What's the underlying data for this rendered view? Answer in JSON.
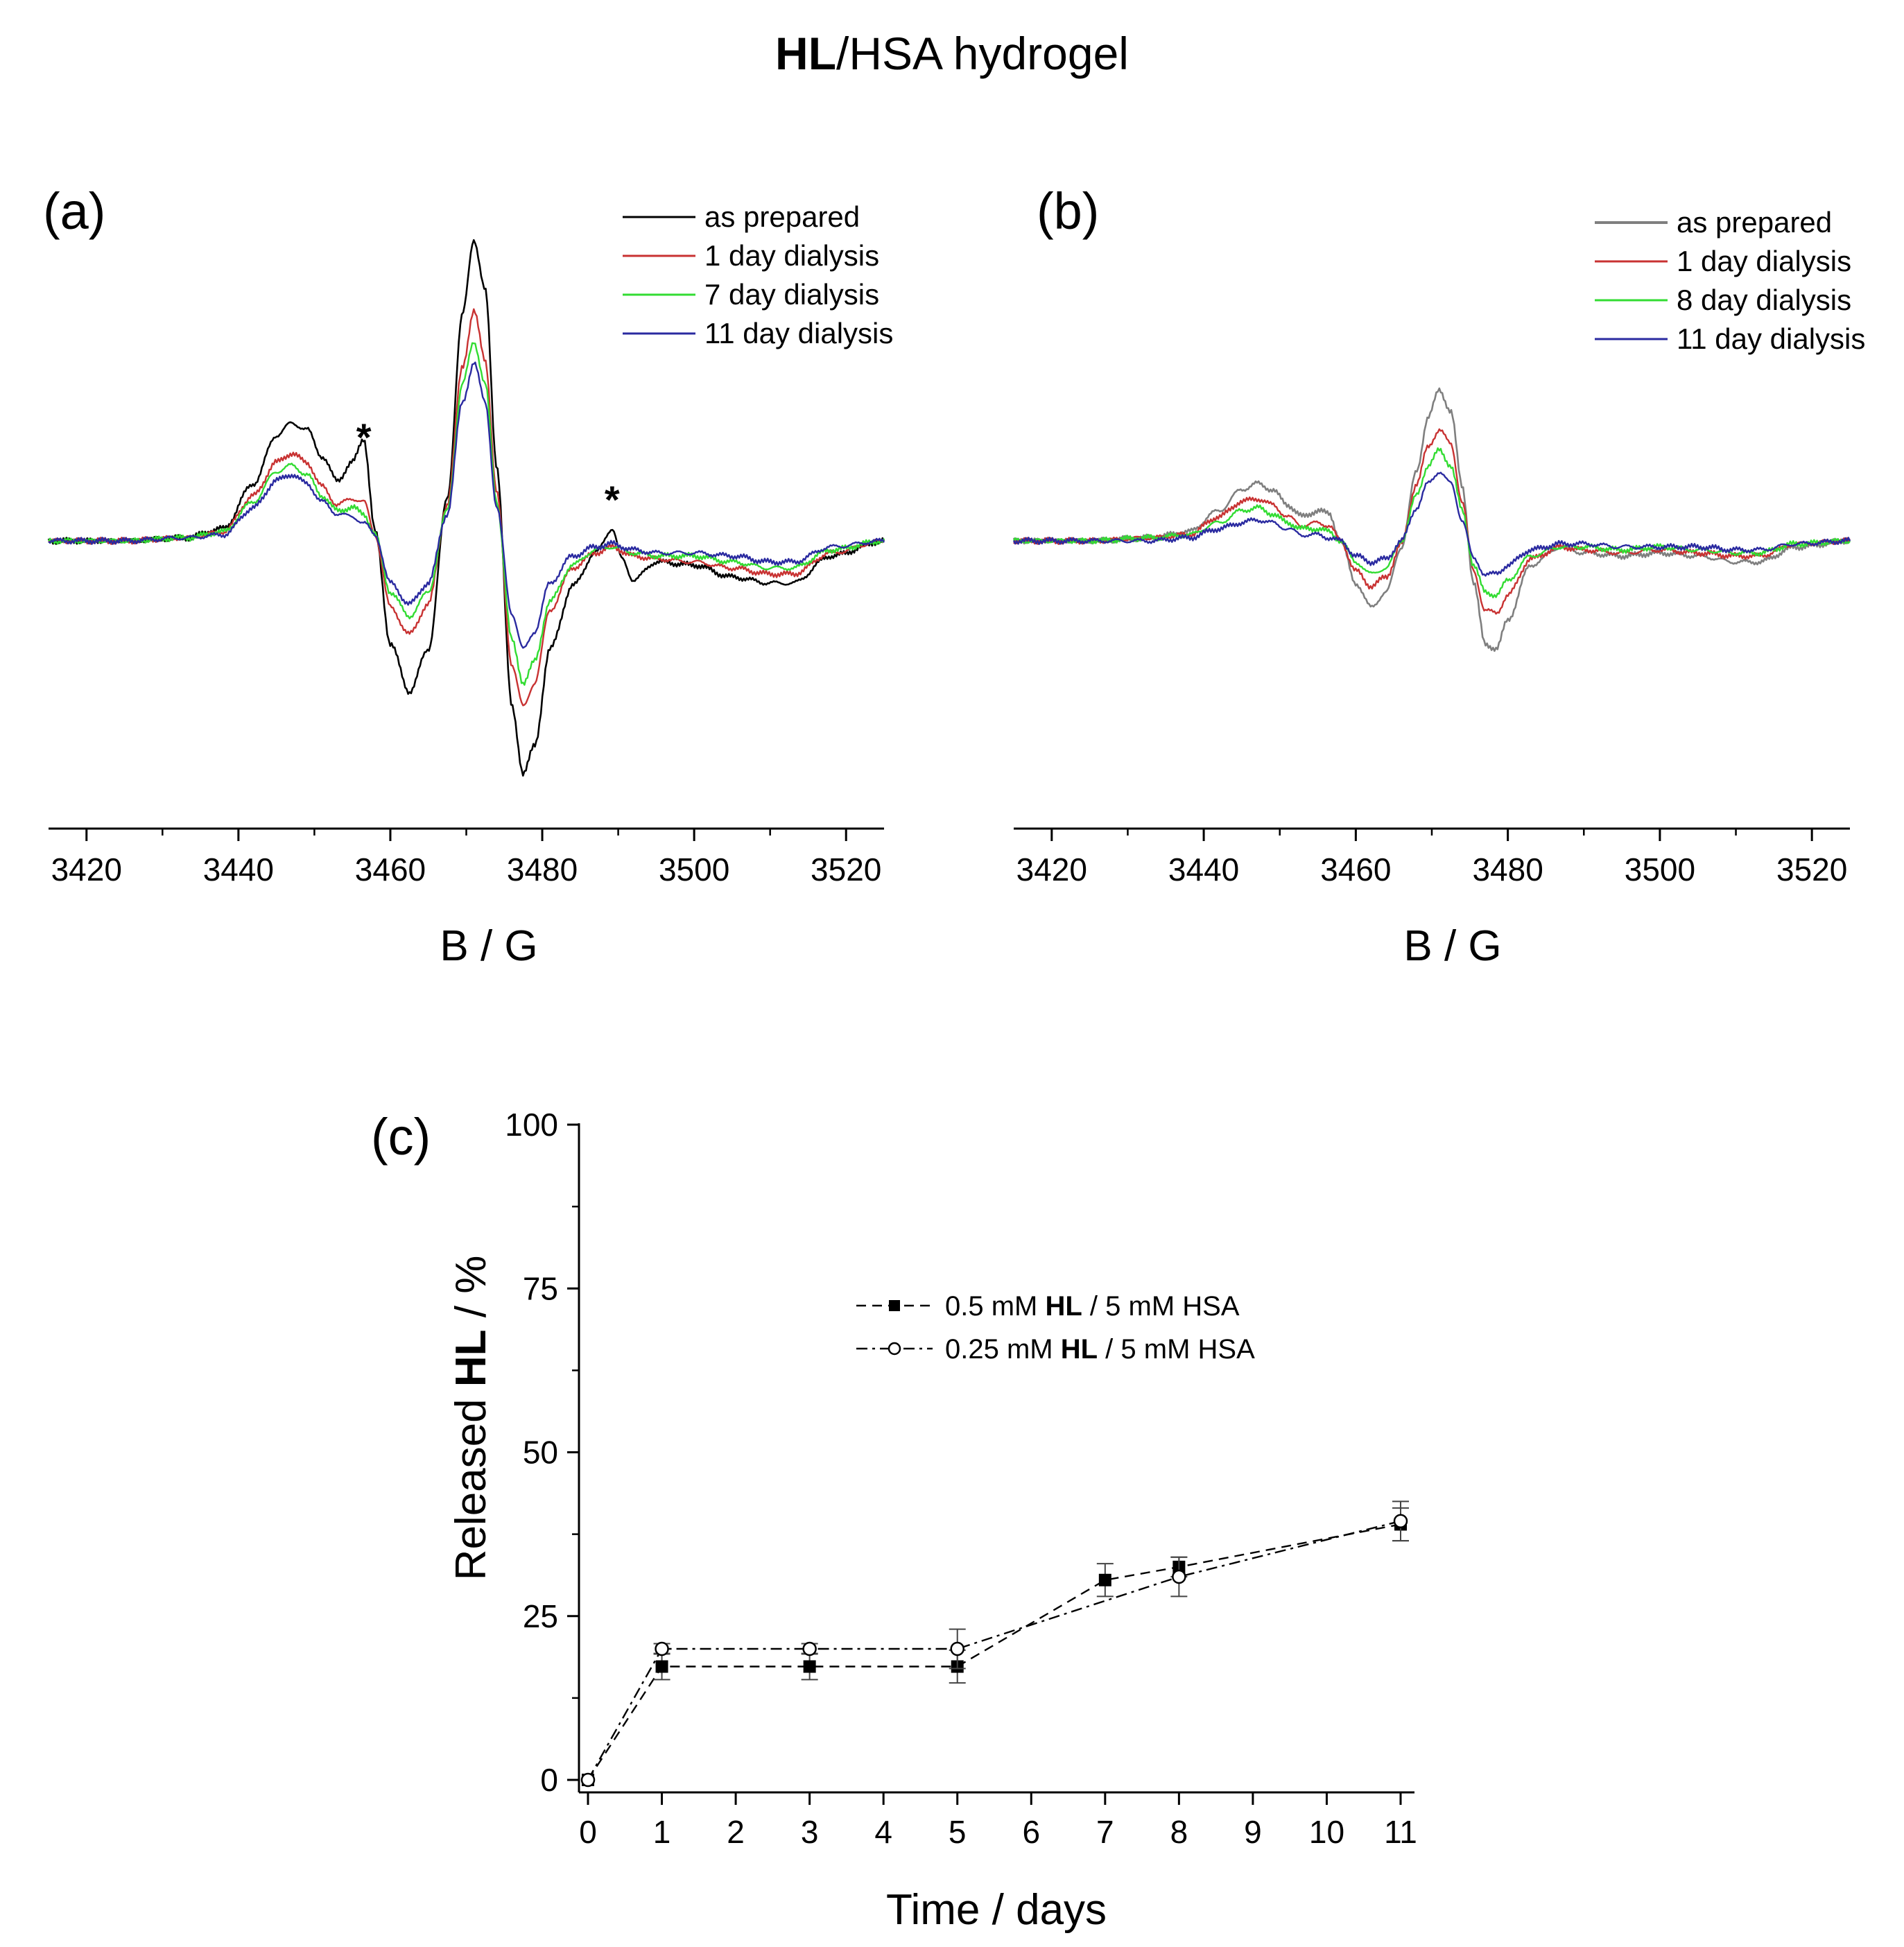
{
  "figure_title": {
    "bold": "HL",
    "rest": "/HSA hydrogel"
  },
  "colors": {
    "as_prepared": "#000000",
    "as_prepared_b": "#7f7f7f",
    "day1": "#c83232",
    "day7": "#32dc32",
    "day8": "#32dc32",
    "day11": "#2a2aa0",
    "axis": "#000000"
  },
  "chart_data": [
    {
      "id": "a",
      "type": "line",
      "panel_label": "(a)",
      "title": "",
      "xlabel": "B / G",
      "ylabel": "",
      "xlim": [
        3415,
        3525
      ],
      "xticks": [
        3420,
        3440,
        3460,
        3480,
        3500,
        3520
      ],
      "tick_labels": [
        "3420",
        "3440",
        "3460",
        "3480",
        "3500",
        "3520"
      ],
      "legend_position": "top-right",
      "annotations": [
        {
          "text": "*",
          "x": 3456.5
        },
        {
          "text": "*",
          "x": 3489.2
        }
      ],
      "series": [
        {
          "name": "as prepared",
          "color_key": "as_prepared",
          "x": [
            3415,
            3425,
            3433,
            3438,
            3442,
            3445,
            3447,
            3449,
            3451,
            3453,
            3455,
            3456.5,
            3458,
            3460,
            3462.5,
            3465,
            3467.5,
            3469.5,
            3471,
            3472.5,
            3474,
            3476,
            3477.5,
            3479,
            3481,
            3484,
            3487,
            3489.2,
            3490.5,
            3492,
            3495,
            3500,
            3505,
            3510,
            3513,
            3518,
            3525
          ],
          "y": [
            0,
            0,
            0.01,
            0.04,
            0.19,
            0.35,
            0.39,
            0.37,
            0.28,
            0.2,
            0.26,
            0.34,
            0.03,
            -0.34,
            -0.5,
            -0.36,
            0.14,
            0.75,
            1.0,
            0.83,
            0.25,
            -0.55,
            -0.77,
            -0.68,
            -0.36,
            -0.15,
            -0.04,
            0.04,
            -0.06,
            -0.13,
            -0.07,
            -0.08,
            -0.12,
            -0.14,
            -0.14,
            -0.05,
            0
          ]
        },
        {
          "name": "1 day dialysis",
          "color_key": "day1",
          "x": [
            3415,
            3425,
            3433,
            3438,
            3442,
            3445,
            3447,
            3449,
            3451,
            3453,
            3455,
            3456.5,
            3458,
            3460,
            3462.5,
            3465,
            3467.5,
            3469.5,
            3471,
            3472.5,
            3474,
            3476,
            3477.5,
            3479,
            3481,
            3484,
            3487,
            3489.2,
            3492,
            3495,
            3500,
            3505,
            3510,
            3513,
            3518,
            3525
          ],
          "y": [
            0,
            0,
            0.01,
            0.03,
            0.15,
            0.26,
            0.29,
            0.26,
            0.18,
            0.12,
            0.14,
            0.13,
            0.02,
            -0.22,
            -0.31,
            -0.21,
            0.12,
            0.58,
            0.76,
            0.6,
            0.16,
            -0.41,
            -0.55,
            -0.47,
            -0.23,
            -0.09,
            -0.04,
            -0.02,
            -0.05,
            -0.06,
            -0.07,
            -0.09,
            -0.11,
            -0.11,
            -0.04,
            0
          ]
        },
        {
          "name": "7 day dialysis",
          "color_key": "day7",
          "x": [
            3415,
            3425,
            3433,
            3438,
            3442,
            3445,
            3447,
            3449,
            3451,
            3453,
            3455,
            3456.5,
            3458,
            3460,
            3462.5,
            3465,
            3467.5,
            3469.5,
            3471,
            3472.5,
            3474,
            3476,
            3477.5,
            3479,
            3481,
            3484,
            3487,
            3489.2,
            3492,
            3495,
            3500,
            3505,
            3510,
            3513,
            3518,
            3525
          ],
          "y": [
            0,
            0,
            0.01,
            0.03,
            0.13,
            0.23,
            0.25,
            0.22,
            0.15,
            0.1,
            0.11,
            0.09,
            0.02,
            -0.17,
            -0.25,
            -0.17,
            0.1,
            0.52,
            0.66,
            0.52,
            0.13,
            -0.33,
            -0.47,
            -0.4,
            -0.2,
            -0.08,
            -0.03,
            -0.02,
            -0.04,
            -0.05,
            -0.05,
            -0.07,
            -0.09,
            -0.09,
            -0.03,
            0
          ]
        },
        {
          "name": "11 day dialysis",
          "color_key": "day11",
          "x": [
            3415,
            3425,
            3433,
            3438,
            3442,
            3445,
            3447,
            3449,
            3451,
            3453,
            3455,
            3456.5,
            3458,
            3460,
            3462.5,
            3465,
            3467.5,
            3469.5,
            3471,
            3472.5,
            3474,
            3476,
            3477.5,
            3479,
            3481,
            3484,
            3487,
            3489.2,
            3492,
            3495,
            3500,
            3505,
            3510,
            3513,
            3518,
            3525
          ],
          "y": [
            0,
            0,
            0.01,
            0.02,
            0.11,
            0.2,
            0.22,
            0.19,
            0.13,
            0.09,
            0.08,
            0.06,
            0.02,
            -0.14,
            -0.21,
            -0.14,
            0.09,
            0.46,
            0.59,
            0.46,
            0.11,
            -0.24,
            -0.36,
            -0.3,
            -0.14,
            -0.05,
            -0.02,
            -0.01,
            -0.03,
            -0.04,
            -0.04,
            -0.05,
            -0.07,
            -0.07,
            -0.02,
            0
          ]
        }
      ]
    },
    {
      "id": "b",
      "type": "line",
      "panel_label": "(b)",
      "title": "",
      "xlabel": "B / G",
      "ylabel": "",
      "xlim": [
        3415,
        3525
      ],
      "xticks": [
        3420,
        3440,
        3460,
        3480,
        3500,
        3520
      ],
      "tick_labels": [
        "3420",
        "3440",
        "3460",
        "3480",
        "3500",
        "3520"
      ],
      "legend_position": "top-right",
      "series": [
        {
          "name": "as prepared",
          "color_key": "as_prepared",
          "x": [
            3415,
            3425,
            3433,
            3438,
            3442,
            3445,
            3447,
            3449,
            3451,
            3453,
            3455,
            3456.5,
            3458,
            3460,
            3462,
            3464,
            3466,
            3468,
            3469.5,
            3471,
            3472.5,
            3474,
            3475.5,
            3477,
            3478.5,
            3480,
            3483,
            3487,
            3490,
            3495,
            3500,
            3505,
            3510,
            3513,
            3518,
            3525
          ],
          "y": [
            0,
            0,
            0.01,
            0.03,
            0.1,
            0.17,
            0.19,
            0.17,
            0.12,
            0.08,
            0.1,
            0.09,
            0.0,
            -0.14,
            -0.22,
            -0.17,
            -0.02,
            0.23,
            0.41,
            0.5,
            0.43,
            0.18,
            -0.14,
            -0.34,
            -0.36,
            -0.26,
            -0.08,
            -0.02,
            -0.04,
            -0.05,
            -0.04,
            -0.05,
            -0.07,
            -0.07,
            -0.02,
            0
          ]
        },
        {
          "name": "1 day dialysis",
          "color_key": "day1",
          "x": [
            3415,
            3425,
            3433,
            3438,
            3442,
            3445,
            3447,
            3449,
            3451,
            3453,
            3455,
            3456.5,
            3458,
            3460,
            3462,
            3464,
            3466,
            3468,
            3469.5,
            3471,
            3472.5,
            3474,
            3475.5,
            3477,
            3478.5,
            3480,
            3483,
            3487,
            3490,
            3495,
            3500,
            3505,
            3510,
            3513,
            3518,
            3525
          ],
          "y": [
            0,
            0,
            0.01,
            0.02,
            0.08,
            0.13,
            0.14,
            0.12,
            0.08,
            0.05,
            0.06,
            0.05,
            0.0,
            -0.1,
            -0.15,
            -0.12,
            -0.01,
            0.19,
            0.31,
            0.37,
            0.32,
            0.13,
            -0.1,
            -0.23,
            -0.24,
            -0.18,
            -0.06,
            -0.02,
            -0.03,
            -0.04,
            -0.03,
            -0.04,
            -0.05,
            -0.05,
            -0.01,
            0
          ]
        },
        {
          "name": "8 day dialysis",
          "color_key": "day8",
          "x": [
            3415,
            3425,
            3433,
            3438,
            3442,
            3445,
            3447,
            3449,
            3451,
            3453,
            3455,
            3456.5,
            3458,
            3460,
            3462,
            3464,
            3466,
            3468,
            3469.5,
            3471,
            3472.5,
            3474,
            3475.5,
            3477,
            3478.5,
            3480,
            3483,
            3487,
            3490,
            3495,
            3500,
            3505,
            3510,
            3513,
            3518,
            3525
          ],
          "y": [
            0,
            0,
            0.01,
            0.02,
            0.06,
            0.1,
            0.11,
            0.09,
            0.06,
            0.04,
            0.04,
            0.03,
            0.0,
            -0.07,
            -0.11,
            -0.09,
            0.0,
            0.15,
            0.25,
            0.3,
            0.25,
            0.1,
            -0.08,
            -0.17,
            -0.18,
            -0.13,
            -0.05,
            -0.02,
            -0.02,
            -0.03,
            -0.02,
            -0.03,
            -0.04,
            -0.04,
            -0.01,
            0
          ]
        },
        {
          "name": "11 day dialysis",
          "color_key": "day11",
          "x": [
            3415,
            3425,
            3433,
            3438,
            3442,
            3445,
            3447,
            3449,
            3451,
            3453,
            3455,
            3456.5,
            3458,
            3460,
            3462,
            3464,
            3466,
            3468,
            3469.5,
            3471,
            3472.5,
            3474,
            3475.5,
            3477,
            3478.5,
            3480,
            3483,
            3487,
            3490,
            3495,
            3500,
            3505,
            3510,
            3513,
            3518,
            3525
          ],
          "y": [
            0,
            0,
            0.0,
            0.01,
            0.04,
            0.06,
            0.07,
            0.06,
            0.04,
            0.02,
            0.02,
            0.01,
            0.0,
            -0.05,
            -0.07,
            -0.06,
            0.0,
            0.11,
            0.19,
            0.23,
            0.19,
            0.07,
            -0.06,
            -0.11,
            -0.11,
            -0.08,
            -0.03,
            -0.01,
            -0.01,
            -0.02,
            -0.02,
            -0.02,
            -0.03,
            -0.03,
            -0.01,
            0
          ]
        }
      ]
    },
    {
      "id": "c",
      "type": "line",
      "panel_label": "(c)",
      "title": "",
      "xlabel": "Time / days",
      "ylabel_parts": [
        "Released ",
        "HL",
        " / %"
      ],
      "xlim": [
        -0.2,
        11.2
      ],
      "ylim": [
        0,
        100
      ],
      "xticks": [
        0,
        1,
        2,
        3,
        4,
        5,
        6,
        7,
        8,
        9,
        10,
        11
      ],
      "yticks": [
        0,
        25,
        50,
        75,
        100
      ],
      "x_tick_labels": [
        "0",
        "1",
        "2",
        "3",
        "4",
        "5",
        "6",
        "7",
        "8",
        "9",
        "10",
        "11"
      ],
      "y_tick_labels": [
        "0",
        "25",
        "50",
        "75",
        "100"
      ],
      "legend_position": "upper-center",
      "series": [
        {
          "legend_parts": [
            "0.5 mM ",
            "HL",
            " / 5 mM HSA"
          ],
          "marker": "filled-square",
          "dash": "dashed",
          "x": [
            0,
            1,
            3,
            5,
            7,
            8,
            11
          ],
          "y": [
            0,
            17.3,
            17.3,
            17.3,
            30.5,
            32.5,
            39.0
          ],
          "err": [
            0,
            2.0,
            2.0,
            2.5,
            2.5,
            1.5,
            2.5
          ]
        },
        {
          "legend_parts": [
            "0.25 mM ",
            "HL",
            " / 5 mM HSA"
          ],
          "marker": "open-circle",
          "dash": "dash-dot",
          "x": [
            0,
            1,
            3,
            5,
            8,
            11
          ],
          "y": [
            0,
            20.0,
            20.0,
            20.0,
            31.0,
            39.5
          ],
          "err": [
            0,
            0.8,
            0.8,
            3.0,
            3.0,
            3.0
          ]
        }
      ]
    }
  ]
}
